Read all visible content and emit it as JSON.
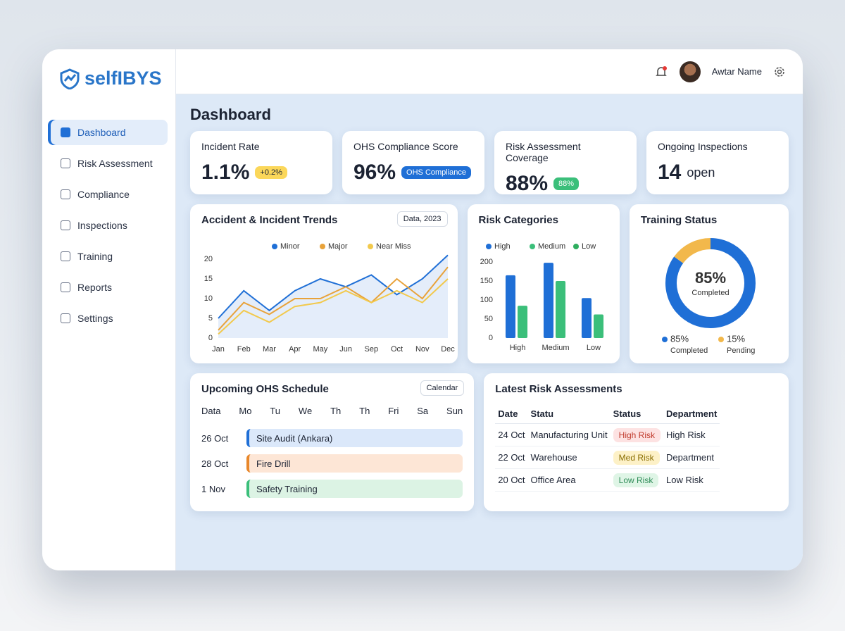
{
  "brand": "selfIBYS",
  "user": {
    "name": "Awtar Name"
  },
  "nav": [
    "Dashboard",
    "Risk Assessment",
    "Compliance",
    "Inspections",
    "Training",
    "Reports",
    "Settings"
  ],
  "page_title": "Dashboard",
  "kpis": [
    {
      "label": "Incident Rate",
      "value": "1.1%",
      "badge": "+0.2%"
    },
    {
      "label": "OHS Compliance Score",
      "value": "96%",
      "badge": "OHS Compliance"
    },
    {
      "label": "Risk Assessment Coverage",
      "value": "88%",
      "badge": "88%"
    },
    {
      "label": "Ongoing Inspections",
      "value": "14",
      "unit": "open"
    }
  ],
  "trend_filter": "Data, 2023",
  "chart_data": [
    {
      "type": "line",
      "title": "Accident & Incident Trends",
      "categories": [
        "Jan",
        "Feb",
        "Mar",
        "Apr",
        "May",
        "Jun",
        "Sep",
        "Oct",
        "Nov",
        "Dec"
      ],
      "series": [
        {
          "name": "Minor",
          "color": "#1f6fd6",
          "values": [
            5,
            12,
            7,
            12,
            15,
            13,
            16,
            11,
            15,
            21
          ]
        },
        {
          "name": "Major",
          "color": "#e8a23a",
          "values": [
            2,
            9,
            6,
            10,
            10,
            13,
            9,
            15,
            10,
            18
          ]
        },
        {
          "name": "Near Miss",
          "color": "#f2c94c",
          "values": [
            1,
            7,
            4,
            8,
            9,
            12,
            9,
            12,
            9,
            15
          ]
        }
      ],
      "ylim": [
        0,
        20
      ],
      "yticks": [
        0,
        5,
        10,
        15,
        20
      ],
      "grid": false
    },
    {
      "type": "bar",
      "title": "Risk Categories",
      "categories": [
        "High",
        "Medium",
        "Low"
      ],
      "series": [
        {
          "name": "High",
          "color": "#1f6fd6",
          "values": [
            165,
            198,
            105
          ]
        },
        {
          "name": "Medium",
          "color": "#3bbf7a",
          "values": [
            85,
            150,
            62
          ]
        },
        {
          "name": "Low",
          "color": "#2fae5f",
          "values": [
            null,
            null,
            null
          ]
        }
      ],
      "ylim": [
        0,
        200
      ],
      "yticks": [
        0,
        50,
        100,
        150,
        200
      ],
      "grid": false
    },
    {
      "type": "pie",
      "title": "Training Status",
      "categories": [
        "Completed",
        "Pending"
      ],
      "values": [
        85,
        15
      ],
      "value_labels": [
        "85%",
        "15%"
      ],
      "colors": [
        "#1f6fd6",
        "#f2b84b"
      ]
    }
  ],
  "schedule": {
    "title": "Upcoming OHS Schedule",
    "filter": "Calendar",
    "days": [
      "Data",
      "Mo",
      "Tu",
      "We",
      "Th",
      "Th",
      "Fri",
      "Sa",
      "Sun"
    ],
    "events": [
      {
        "date": "26 Oct",
        "label": "Site Audit (Ankara)"
      },
      {
        "date": "28 Oct",
        "label": "Fire Drill"
      },
      {
        "date": "1 Nov",
        "label": "Safety Training"
      }
    ]
  },
  "risk_table": {
    "title": "Latest Risk Assessments",
    "headers": [
      "Date",
      "Statu",
      "Status",
      "Department"
    ],
    "rows": [
      [
        "24 Oct",
        "Manufacturing Unit",
        "High Risk",
        "High Risk"
      ],
      [
        "22 Oct",
        "Warehouse",
        "Med Risk",
        "Department"
      ],
      [
        "20 Oct",
        "Office Area",
        "Low Risk",
        "Low Risk"
      ]
    ]
  }
}
